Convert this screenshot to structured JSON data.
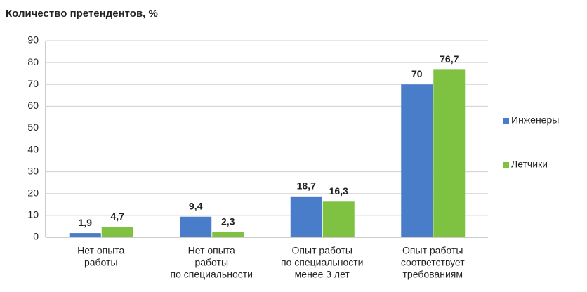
{
  "chart_data": {
    "type": "bar",
    "title": "Количество претендентов, %",
    "categories": [
      [
        "Нет опыта",
        "работы"
      ],
      [
        "Нет опыта",
        "работы",
        "по специальности"
      ],
      [
        "Опыт работы",
        "по специальности",
        "менее 3 лет"
      ],
      [
        "Опыт работы",
        "соответствует",
        "требованиям"
      ]
    ],
    "series": [
      {
        "name": "Инженеры",
        "color": "#4a7dc9",
        "values": [
          1.9,
          9.4,
          18.7,
          70
        ],
        "value_labels": [
          "1,9",
          "9,4",
          "18,7",
          "70"
        ]
      },
      {
        "name": "Летчики",
        "color": "#7fc241",
        "values": [
          4.7,
          2.3,
          16.3,
          76.7
        ],
        "value_labels": [
          "4,7",
          "2,3",
          "16,3",
          "76,7"
        ]
      }
    ],
    "ylim": [
      0,
      90
    ],
    "yticks": [
      0,
      10,
      20,
      30,
      40,
      50,
      60,
      70,
      80,
      90
    ],
    "grid": true,
    "legend": "right"
  }
}
